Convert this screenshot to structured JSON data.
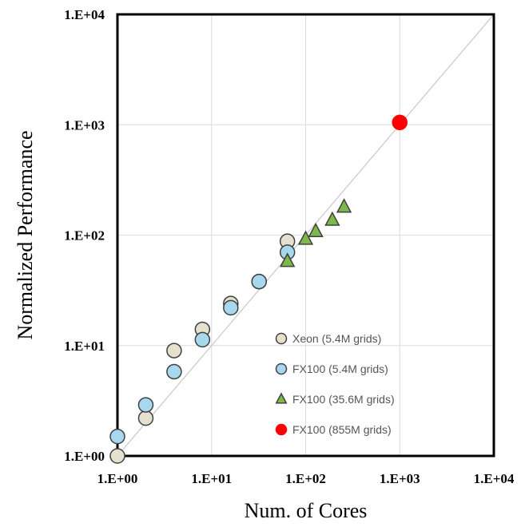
{
  "chart_data": {
    "type": "scatter",
    "xlabel": "Num. of Cores",
    "ylabel": "Normalized Performance",
    "xscale": "log",
    "yscale": "log",
    "xlim": [
      1,
      10000
    ],
    "ylim": [
      1,
      10000
    ],
    "x_ticks": [
      "1.E+00",
      "1.E+01",
      "1.E+02",
      "1.E+03",
      "1.E+04"
    ],
    "y_ticks": [
      "1.E+00",
      "1.E+01",
      "1.E+02",
      "1.E+03",
      "1.E+04"
    ],
    "grid": true,
    "reference_line": "y = x",
    "legend_position": "inside-bottom-right",
    "series": [
      {
        "name": "Xeon (5.4M grids)",
        "marker": "circle",
        "color": "#E6E1CF",
        "edge_color": "#404040",
        "points": [
          [
            1,
            1.0
          ],
          [
            2,
            2.2
          ],
          [
            4,
            9.0
          ],
          [
            8,
            14.0
          ],
          [
            16,
            24.0
          ],
          [
            32,
            38.0
          ],
          [
            64,
            88.0
          ]
        ]
      },
      {
        "name": "FX100 (5.4M grids)",
        "marker": "circle",
        "color": "#A8D8EE",
        "edge_color": "#404040",
        "points": [
          [
            1,
            1.5
          ],
          [
            2,
            2.9
          ],
          [
            4,
            5.8
          ],
          [
            8,
            11.3
          ],
          [
            16,
            22.0
          ],
          [
            32,
            38.0
          ],
          [
            64,
            70.0
          ]
        ]
      },
      {
        "name": "FX100 (35.6M grids)",
        "marker": "triangle",
        "color": "#7DB84A",
        "edge_color": "#404040",
        "points": [
          [
            64,
            58.0
          ],
          [
            100,
            92.0
          ],
          [
            128,
            108.0
          ],
          [
            192,
            137.0
          ],
          [
            256,
            180.0
          ]
        ]
      },
      {
        "name": "FX100 (855M grids)",
        "marker": "circle",
        "color": "#FF0000",
        "edge_color": "#FF0000",
        "points": [
          [
            1000,
            1050.0
          ]
        ]
      }
    ]
  }
}
